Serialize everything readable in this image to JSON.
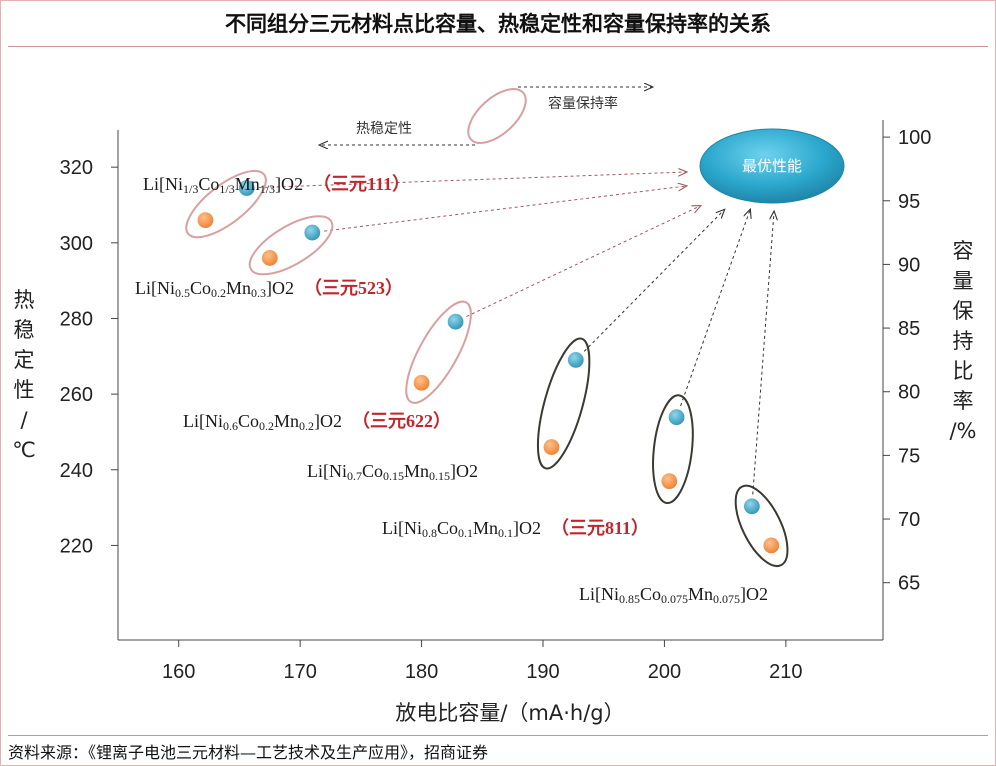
{
  "title": "不同组分三元材料点比容量、热稳定性和容量保持率的关系",
  "source": "资料来源：《锂离子电池三元材料—工艺技术及生产应用》，招商证券",
  "chart_data": {
    "type": "scatter",
    "xlabel": "放电比容量/（mA·h/g）",
    "ylabel_left": [
      "热",
      "稳",
      "定",
      "性",
      "/",
      "℃"
    ],
    "ylabel_right": [
      "容",
      "量",
      "保",
      "持",
      "比",
      "率",
      "/%"
    ],
    "x_ticks": [
      160,
      170,
      180,
      190,
      200,
      210
    ],
    "y_left_ticks": [
      220,
      240,
      260,
      280,
      300,
      320
    ],
    "y_right_ticks": [
      65,
      70,
      75,
      80,
      85,
      90,
      95,
      100
    ],
    "xlim": [
      155,
      218
    ],
    "ylim_left": [
      195,
      333
    ],
    "ylim_right": [
      60.5,
      101.5
    ],
    "legend": {
      "capacity_retention": "容量保持率",
      "thermal_stability": "热稳定性",
      "best": "最优性能"
    },
    "series": [
      {
        "name": "热稳定性",
        "color": "#f0883a"
      },
      {
        "name": "容量保持率",
        "color": "#3a9fc0"
      }
    ],
    "materials": [
      {
        "label": "Li[Ni1/3Co1/3Mn1/3]O2",
        "label_parts": [
          [
            "Li[Ni",
            ""
          ],
          [
            "1/3",
            "sub"
          ],
          [
            "Co",
            ""
          ],
          [
            "1/3",
            "sub"
          ],
          [
            "Mn",
            ""
          ],
          [
            "1/3",
            "sub"
          ],
          [
            "]O",
            ""
          ],
          [
            "2",
            "sub2"
          ]
        ],
        "tag": "（三元111）",
        "ring": "#d9a0a4",
        "thermal": {
          "x": 162.2,
          "y": 306
        },
        "retention": {
          "x": 165.6,
          "y": 96
        }
      },
      {
        "label": "Li[Ni0.5Co0.2Mn0.3]O2",
        "label_parts": [
          [
            "Li[Ni",
            ""
          ],
          [
            "0.5",
            "sub"
          ],
          [
            "Co",
            ""
          ],
          [
            "0.2",
            "sub"
          ],
          [
            "Mn",
            ""
          ],
          [
            "0.3",
            "sub"
          ],
          [
            "]O",
            ""
          ],
          [
            "2",
            "sub2"
          ]
        ],
        "tag": "（三元523）",
        "ring": "#d9a0a4",
        "thermal": {
          "x": 167.5,
          "y": 296
        },
        "retention": {
          "x": 171.0,
          "y": 92.5
        }
      },
      {
        "label": "Li[Ni0.6Co0.2Mn0.2]O2",
        "label_parts": [
          [
            "Li[Ni",
            ""
          ],
          [
            "0.6",
            "sub"
          ],
          [
            "Co",
            ""
          ],
          [
            "0.2",
            "sub"
          ],
          [
            "Mn",
            ""
          ],
          [
            "0.2",
            "sub"
          ],
          [
            "]O",
            ""
          ],
          [
            "2",
            "sub2"
          ]
        ],
        "tag": "（三元622）",
        "ring": "#d9a0a4",
        "thermal": {
          "x": 180.0,
          "y": 263
        },
        "retention": {
          "x": 182.8,
          "y": 85.5
        }
      },
      {
        "label": "Li[Ni0.7Co0.15Mn0.15]O2",
        "label_parts": [
          [
            "Li[Ni",
            ""
          ],
          [
            "0.7",
            "sub"
          ],
          [
            "Co",
            ""
          ],
          [
            "0.15",
            "sub"
          ],
          [
            "Mn",
            ""
          ],
          [
            "0.15",
            "sub"
          ],
          [
            "]O",
            ""
          ],
          [
            "2",
            "sub2"
          ]
        ],
        "tag": "",
        "ring": "#3a3a30",
        "thermal": {
          "x": 190.7,
          "y": 246
        },
        "retention": {
          "x": 192.7,
          "y": 82.5
        }
      },
      {
        "label": "Li[Ni0.8Co0.1Mn0.1]O2",
        "label_parts": [
          [
            "Li[Ni",
            ""
          ],
          [
            "0.8",
            "sub"
          ],
          [
            "Co",
            ""
          ],
          [
            "0.1",
            "sub"
          ],
          [
            "Mn",
            ""
          ],
          [
            "0.1",
            "sub"
          ],
          [
            "]O",
            ""
          ],
          [
            "2",
            "sub2"
          ]
        ],
        "tag": "（三元811）",
        "ring": "#3a3a30",
        "thermal": {
          "x": 200.4,
          "y": 237
        },
        "retention": {
          "x": 201.0,
          "y": 78
        }
      },
      {
        "label": "Li[Ni0.85Co0.075Mn0.075]O2",
        "label_parts": [
          [
            "Li[Ni",
            ""
          ],
          [
            "0.85",
            "sub"
          ],
          [
            "Co",
            ""
          ],
          [
            "0.075",
            "sub"
          ],
          [
            "Mn",
            ""
          ],
          [
            "0.075",
            "sub"
          ],
          [
            "]O",
            ""
          ],
          [
            "2",
            "sub2"
          ]
        ],
        "tag": "",
        "ring": "#3a3a30",
        "thermal": {
          "x": 208.8,
          "y": 220
        },
        "retention": {
          "x": 207.2,
          "y": 71
        }
      }
    ]
  }
}
